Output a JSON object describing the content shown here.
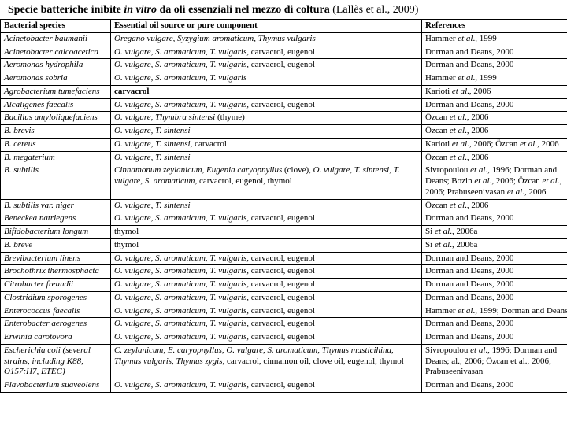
{
  "title": {
    "prefix": "Specie batteriche inibite ",
    "italic": "in vitro",
    "mid": " da oli essenziali nel mezzo di coltura ",
    "paren": "(Lallès et al., 2009)"
  },
  "headers": {
    "species": "Bacterial species",
    "oil": "Essential oil source or pure component",
    "ref": "References"
  },
  "rows": [
    {
      "sp": "Acinetobacter baumanii",
      "oil": "<span class=\"it\">Oregano vulgare, Syzygium aromaticum, Thymus vulgaris</span>",
      "ref": "Hammer <span class=\"it\">et al</span>., 1999"
    },
    {
      "sp": "Acinetobacter calcoacetica",
      "oil": "<span class=\"it\">O. vulgare, S. aromaticum, T. vulgaris,</span> carvacrol, eugenol",
      "ref": "Dorman and Deans, 2000"
    },
    {
      "sp": "Aeromonas hydrophila",
      "oil": "<span class=\"it\">O. vulgare, S. aromaticum, T. vulgaris,</span> carvacrol, eugenol",
      "ref": "Dorman and Deans, 2000"
    },
    {
      "sp": "Aeromonas sobria",
      "oil": "<span class=\"it\">O. vulgare, S. aromaticum, T. vulgaris</span>",
      "ref": "Hammer <span class=\"it\">et al</span>., 1999"
    },
    {
      "sp": "Agrobacterium tumefaciens",
      "oil": "<b>carvacrol</b>",
      "ref": "Karioti <span class=\"it\">et al</span>., 2006"
    },
    {
      "sp": "Alcaligenes faecalis",
      "oil": "<span class=\"it\">O. vulgare, S. aromaticum, T. vulgaris,</span> carvacrol, eugenol",
      "ref": "Dorman and Deans, 2000"
    },
    {
      "sp": "Bacillus amyloliquefaciens",
      "oil": "<span class=\"it\">O. vulgare, Thymbra sintensi</span> (thyme)",
      "ref": "Özcan <span class=\"it\">et al</span>., 2006"
    },
    {
      "sp": "B. brevis",
      "oil": "<span class=\"it\">O. vulgare, T. sintensi</span>",
      "ref": "Özcan <span class=\"it\">et al</span>., 2006"
    },
    {
      "sp": "B. cereus",
      "oil": "<span class=\"it\">O. vulgare, T. sintensi,</span> carvacrol",
      "ref": "Karioti <span class=\"it\">et al</span>., 2006; Özcan <span class=\"it\">et al</span>., 2006"
    },
    {
      "sp": "B. megaterium",
      "oil": "<span class=\"it\">O. vulgare, T. sintensi</span>",
      "ref": "Özcan <span class=\"it\">et al</span>., 2006"
    },
    {
      "sp": "B. subtilis",
      "wrap": true,
      "oil": "<span class=\"it\">Cinnamonum zeylanicum, Eugenia caryopnyllus</span> (clove), <span class=\"it\">O. vulgare, T. sintensi, T. vulgare, S. aromaticum,</span> carvacrol, eugenol, thymol",
      "ref": "Sivropoulou <span class=\"it\">et al</span>., 1996; Dorman and Deans; Bozin <span class=\"it\">et al</span>., 2006; Özcan <span class=\"it\">et al</span>., 2006; Prabuseenivasan <span class=\"it\">et al</span>., 2006"
    },
    {
      "sp": "B. subtilis var. niger",
      "oil": "<span class=\"it\">O. vulgare, T. sintensi</span>",
      "ref": "Özcan <span class=\"it\">et al</span>., 2006"
    },
    {
      "sp": "Beneckea natriegens",
      "oil": "<span class=\"it\">O. vulgare, S. aromaticum, T. vulgaris,</span> carvacrol, eugenol",
      "ref": "Dorman and Deans, 2000"
    },
    {
      "sp": "Bifidobacterium longum",
      "oil": "thymol",
      "ref": "Si <span class=\"it\">et al</span>., 2006a"
    },
    {
      "sp": "B. breve",
      "oil": "thymol",
      "ref": "Si <span class=\"it\">et al</span>., 2006a"
    },
    {
      "sp": "Brevibacterium linens",
      "oil": "<span class=\"it\">O. vulgare, S. aromaticum, T. vulgaris,</span> carvacrol, eugenol",
      "ref": "Dorman and Deans, 2000"
    },
    {
      "sp": "Brochothrix thermosphacta",
      "oil": "<span class=\"it\">O. vulgare, S. aromaticum, T. vulgaris,</span> carvacrol, eugenol",
      "ref": "Dorman and Deans, 2000"
    },
    {
      "sp": "Citrobacter freundii",
      "oil": "<span class=\"it\">O. vulgare, S. aromaticum, T. vulgaris,</span> carvacrol, eugenol",
      "ref": "Dorman and Deans, 2000"
    },
    {
      "sp": "Clostridium sporogenes",
      "oil": "<span class=\"it\">O. vulgare, S. aromaticum, T. vulgaris,</span> carvacrol, eugenol",
      "ref": "Dorman and Deans, 2000"
    },
    {
      "sp": "Enterococcus faecalis",
      "oil": "<span class=\"it\">O. vulgare, S. aromaticum, T. vulgaris,</span> carvacrol, eugenol",
      "ref": "Hammer <span class=\"it\">et al</span>., 1999; Dorman and Deans"
    },
    {
      "sp": "Enterobacter aerogenes",
      "oil": "<span class=\"it\">O. vulgare, S. aromaticum, T. vulgaris,</span> carvacrol, eugenol",
      "ref": "Dorman and Deans, 2000"
    },
    {
      "sp": "Erwinia carotovora",
      "oil": "<span class=\"it\">O. vulgare, S. aromaticum, T. vulgaris,</span> carvacrol, eugenol",
      "ref": "Dorman and Deans, 2000"
    },
    {
      "sp": "Escherichia coli (several strains, including K88, O157:H7, ETEC)",
      "wrap": true,
      "oil": "<span class=\"it\">C. zeylanicum, E. caryopnyllus, O. vulgare, S. aromaticum, Thymus masticihina, Thymus vulgaris, Thymus zygis,</span> carvacrol, cinnamon oil, clove oil, eugenol, thymol",
      "ref": "Sivropoulou <span class=\"it\">et al</span>., 1996; Dorman and Deans; al., 2006; Özcan et al., 2006; Prabuseenivasan"
    },
    {
      "sp": "Flavobacterium suaveolens",
      "oil": "<span class=\"it\">O. vulgare, S. aromaticum, T. vulgaris,</span> carvacrol, eugenol",
      "ref": "Dorman and Deans, 2000"
    }
  ]
}
